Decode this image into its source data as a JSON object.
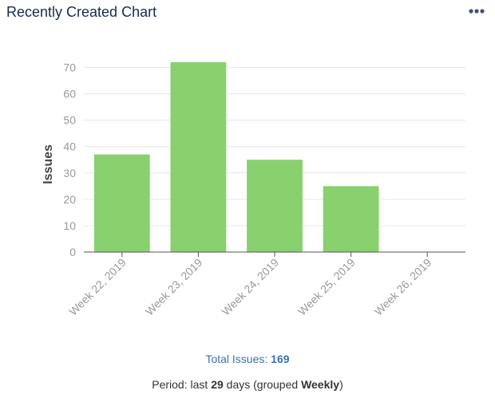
{
  "header": {
    "title": "Recently Created Chart",
    "menu_icon": "more-horizontal-icon"
  },
  "chart_data": {
    "type": "bar",
    "categories": [
      "Week 22, 2019",
      "Week 23, 2019",
      "Week 24, 2019",
      "Week 25, 2019",
      "Week 26, 2019"
    ],
    "values": [
      37,
      72,
      35,
      25,
      0
    ],
    "xlabel": "",
    "ylabel": "Issues",
    "ylim": [
      0,
      75
    ],
    "yticks": [
      0,
      10,
      20,
      30,
      40,
      50,
      60,
      70
    ],
    "grid": true,
    "legend": "none",
    "bar_color": "#89d06f"
  },
  "footer": {
    "total_label": "Total Issues:",
    "total_value": "169",
    "period_prefix": "Period: last",
    "period_days": "29",
    "period_mid": "days (grouped",
    "period_group": "Weekly",
    "period_suffix": ")"
  },
  "colors": {
    "title": "#172b4d",
    "link": "#3b73af",
    "grid": "#e6e6e6",
    "axis": "#555555"
  }
}
